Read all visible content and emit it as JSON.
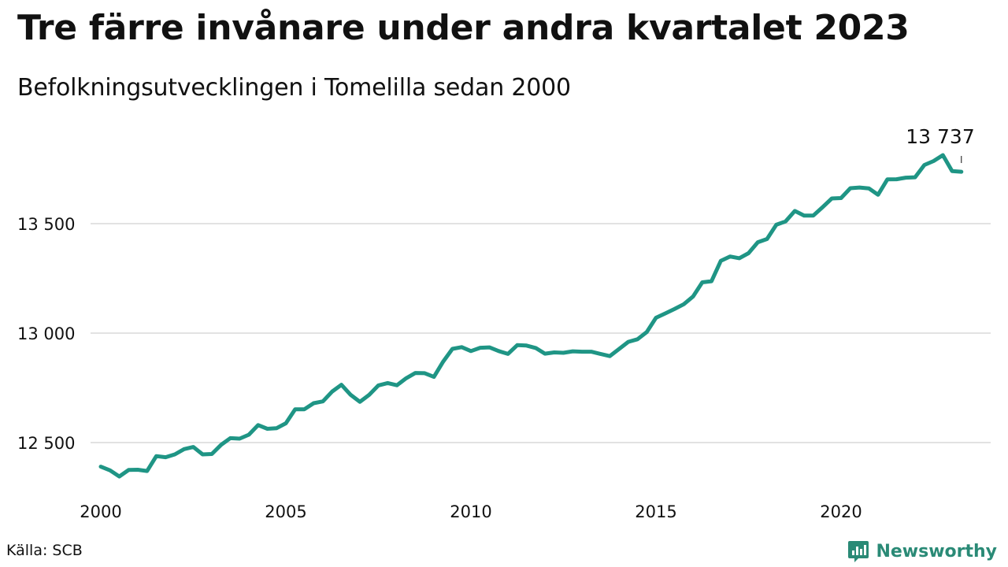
{
  "title": "Tre färre invånare under andra kvartalet 2023",
  "subtitle": "Befolkningsutvecklingen i Tomelilla sedan 2000",
  "source": "Källa: SCB",
  "logo_text": "Newsworthy",
  "colors": {
    "line": "#1f9585",
    "grid": "#e2e2e2",
    "text": "#111111",
    "logo": "#2a8a76"
  },
  "chart_data": {
    "type": "line",
    "title": "Befolkningsutvecklingen i Tomelilla sedan 2000",
    "xlabel": "",
    "ylabel": "",
    "xlim": [
      2000,
      2023.4
    ],
    "ylim": [
      12250,
      13820
    ],
    "x_ticks": [
      2000,
      2005,
      2010,
      2015,
      2020
    ],
    "x_tick_labels": [
      "2000",
      "2005",
      "2010",
      "2015",
      "2020"
    ],
    "y_ticks": [
      12500,
      13000,
      13500
    ],
    "y_tick_labels": [
      "12 500",
      "13 000",
      "13 500"
    ],
    "grid": "horizontal",
    "legend": "none",
    "start": "2000-Q1",
    "series": [
      {
        "values": [
          12390,
          12373,
          12345,
          12375,
          12376,
          12370,
          12438,
          12433,
          12446,
          12470,
          12480,
          12446,
          12448,
          12490,
          12520,
          12518,
          12536,
          12580,
          12563,
          12566,
          12588,
          12652,
          12652,
          12680,
          12688,
          12733,
          12764,
          12718,
          12686,
          12718,
          12761,
          12772,
          12762,
          12794,
          12818,
          12817,
          12800,
          12870,
          12928,
          12936,
          12918,
          12933,
          12935,
          12918,
          12905,
          12945,
          12943,
          12932,
          12906,
          12912,
          12910,
          12917,
          12915,
          12915,
          12905,
          12895,
          12927,
          12960,
          12972,
          13005,
          13070,
          13090,
          13110,
          13132,
          13167,
          13232,
          13237,
          13330,
          13350,
          13342,
          13365,
          13415,
          13430,
          13495,
          13510,
          13558,
          13537,
          13537,
          13575,
          13615,
          13617,
          13662,
          13665,
          13661,
          13632,
          13702,
          13703,
          13710,
          13712,
          13768,
          13786,
          13813,
          13740,
          13737
        ]
      }
    ],
    "annotations": [
      {
        "x": "2023-Q2",
        "value": 13737,
        "text": "13 737"
      }
    ]
  }
}
